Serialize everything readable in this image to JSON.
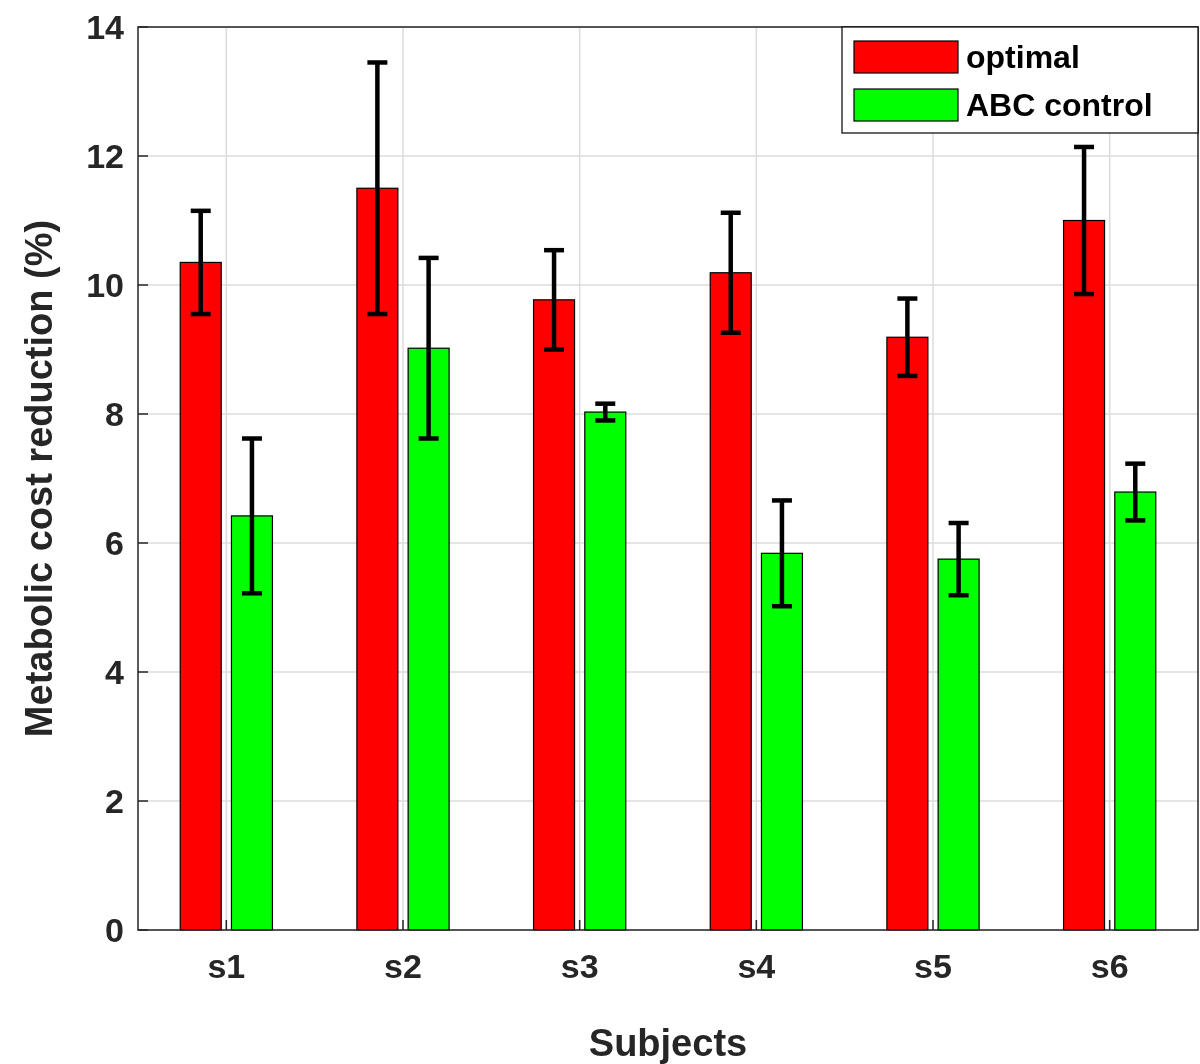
{
  "chart_data": {
    "type": "bar",
    "xlabel": "Subjects",
    "ylabel": "Metabolic cost reduction (%)",
    "categories": [
      "s1",
      "s2",
      "s3",
      "s4",
      "s5",
      "s6"
    ],
    "series": [
      {
        "name": "optimal",
        "color": "#ff0000",
        "values": [
          10.35,
          11.5,
          9.77,
          10.19,
          9.19,
          11.0
        ],
        "errors": [
          0.8,
          1.95,
          0.77,
          0.93,
          0.6,
          1.14
        ]
      },
      {
        "name": "ABC control",
        "color": "#00ff00",
        "values": [
          6.42,
          9.02,
          8.03,
          5.84,
          5.75,
          6.79
        ],
        "errors": [
          1.2,
          1.4,
          0.13,
          0.82,
          0.56,
          0.44
        ]
      }
    ],
    "ylim": [
      0,
      14
    ],
    "yticks": [
      0,
      2,
      4,
      6,
      8,
      10,
      12,
      14
    ],
    "grid": true,
    "legend": "top right"
  }
}
